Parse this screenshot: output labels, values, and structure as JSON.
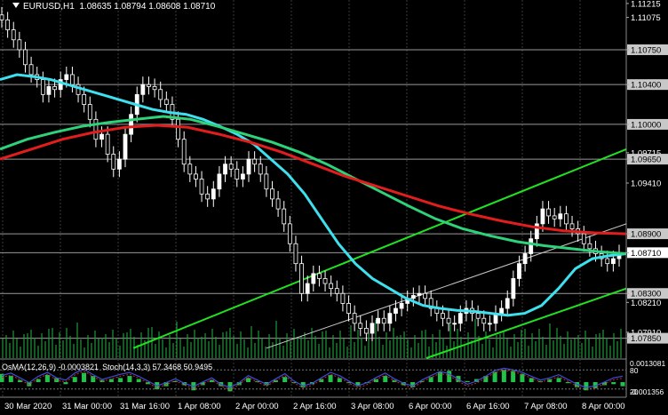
{
  "header": {
    "symbol": "EURUSD,H1",
    "ohlc": "1.08635 1.08794 1.08608 1.08710"
  },
  "oscillator": {
    "osma": "OsMA(12,26,9) -0.0003821",
    "stoch": "Stoch(14,3,3) 57.3468 50.9495",
    "right_labels": [
      "0.0013081",
      "80",
      "20",
      "-0.001356"
    ]
  },
  "chart_data": {
    "type": "line",
    "title": "",
    "xlabel": "",
    "ylabel": "",
    "ylim": [
      1.0765,
      1.1125
    ],
    "yticks": [
      "1.11215",
      "1.11075",
      "1.10750",
      "1.10400",
      "1.10000",
      "1.09715",
      "1.09650",
      "1.09410",
      "1.08900",
      "1.08710",
      "1.08300",
      "1.08210",
      "1.07910",
      "1.07850"
    ],
    "highlighted_levels": [
      1.1075,
      1.104,
      1.1,
      1.0965,
      1.089,
      1.0871,
      1.083,
      1.0785
    ],
    "current_price": 1.0871,
    "x_tick_labels": [
      "30 Mar 2020",
      "31 Mar 00:00",
      "31 Mar 16:00",
      "1 Apr 08:00",
      "2 Apr 00:00",
      "2 Apr 16:00",
      "3 Apr 08:00",
      "6 Apr 00:00",
      "6 Apr 16:00",
      "7 Apr 08:00",
      "8 Apr 00:00"
    ],
    "candles_close": [
      1.1105,
      1.1095,
      1.1085,
      1.1075,
      1.106,
      1.105,
      1.1045,
      1.103,
      1.1038,
      1.1035,
      1.1045,
      1.105,
      1.104,
      1.103,
      1.102,
      1.1005,
      1.0985,
      1.099,
      1.097,
      1.0955,
      1.0965,
      1.099,
      1.101,
      1.103,
      1.104,
      1.1038,
      1.1035,
      1.1025,
      1.102,
      1.1005,
      1.0985,
      1.096,
      1.095,
      1.0945,
      1.093,
      1.0925,
      1.0935,
      1.095,
      1.096,
      1.0955,
      1.0945,
      1.095,
      1.0965,
      1.096,
      1.095,
      1.0935,
      1.0925,
      1.0915,
      1.09,
      1.088,
      1.086,
      1.083,
      1.084,
      1.085,
      1.0845,
      1.084,
      1.0835,
      1.083,
      1.082,
      1.081,
      1.08,
      1.0795,
      1.079,
      1.08,
      1.0805,
      1.08,
      1.081,
      1.0815,
      1.082,
      1.0825,
      1.0828,
      1.083,
      1.0825,
      1.0815,
      1.081,
      1.0805,
      1.08,
      1.08,
      1.081,
      1.0815,
      1.081,
      1.0805,
      1.08,
      1.08,
      1.081,
      1.0815,
      1.0825,
      1.0845,
      1.086,
      1.087,
      1.0885,
      1.09,
      1.0915,
      1.0908,
      1.0905,
      1.091,
      1.09,
      1.0895,
      1.089,
      1.088,
      1.0875,
      1.087,
      1.0865,
      1.086,
      1.0865,
      1.0871
    ],
    "series": [
      {
        "values": [
          1.1045,
          1.105,
          1.1048,
          1.1045,
          1.104,
          1.1035,
          1.103,
          1.1025,
          1.102,
          1.1015,
          1.1012,
          1.101,
          1.1005,
          1.0998,
          1.099,
          1.098,
          1.0965,
          1.095,
          1.093,
          1.0905,
          1.088,
          1.086,
          1.0845,
          1.0835,
          1.0825,
          1.0818,
          1.0815,
          1.0813,
          1.0812,
          1.081,
          1.0808,
          1.081,
          1.0818,
          1.0835,
          1.0855,
          1.0865,
          1.0868,
          1.087
        ],
        "color": "#3fe0ee"
      },
      {
        "values": [
          1.0975,
          1.0985,
          1.0992,
          1.0998,
          1.1002,
          1.1005,
          1.1008,
          1.1005,
          1.0998,
          1.099,
          1.0982,
          1.0972,
          1.096,
          1.0946,
          1.0932,
          1.0918,
          1.0905,
          1.0895,
          1.0888,
          1.0882,
          1.0878,
          1.0875,
          1.0872,
          1.087
        ],
        "color": "#2ed27a"
      },
      {
        "values": [
          1.0965,
          1.0975,
          1.0985,
          1.0992,
          1.0997,
          1.0999,
          1.0997,
          1.099,
          1.0982,
          1.0972,
          1.096,
          1.0948,
          1.0938,
          1.0928,
          1.0918,
          1.091,
          1.0903,
          1.0897,
          1.0893,
          1.0891,
          1.089
        ],
        "color": "#e21d1d"
      }
    ],
    "channels": [
      {
        "from": 1.0775,
        "to": 1.0975,
        "color": "#22e022"
      },
      {
        "from": 1.0765,
        "to": 1.0835,
        "color": "#22e022"
      },
      {
        "from": 1.0775,
        "to": 1.09,
        "color": "#c8c8c8"
      }
    ],
    "oscillator_stoch": [
      62,
      70,
      55,
      40,
      60,
      72,
      55,
      48,
      70,
      82,
      65,
      50,
      58,
      66,
      72,
      60,
      45,
      30,
      40,
      52,
      38,
      28,
      42,
      55,
      35,
      25,
      40,
      62,
      48,
      35,
      52,
      68,
      45,
      30,
      38,
      55,
      72,
      62,
      45,
      30,
      40,
      56,
      70,
      52,
      38,
      30,
      48,
      62,
      75,
      68,
      50,
      35,
      45,
      60,
      78,
      85,
      80,
      72,
      60,
      48,
      55,
      65,
      50,
      35,
      25,
      30,
      42,
      55,
      60
    ],
    "oscillator_osma": [
      0.0008,
      0.0006,
      0.0002,
      -0.0004,
      0.0003,
      0.0007,
      0.0004,
      -0.0002,
      0.0005,
      0.0009,
      0.0006,
      0.0002,
      0.0003,
      0.0004,
      0.0006,
      0.0003,
      -0.0002,
      -0.0007,
      -0.0004,
      0.0001,
      -0.0003,
      -0.0008,
      -0.0003,
      0.0002,
      -0.0004,
      -0.0009,
      -0.0003,
      0.0004,
      0.0001,
      -0.0003,
      0.0002,
      0.0005,
      -0.0001,
      -0.0005,
      -0.0002,
      0.0003,
      0.0007,
      0.0004,
      -0.0001,
      -0.0004,
      -0.0001,
      0.0003,
      0.0006,
      0.0002,
      -0.0003,
      -0.0005,
      0.0001,
      0.0005,
      0.001,
      0.0011,
      0.0006,
      0.0001,
      0.0003,
      0.0006,
      0.001,
      0.0012,
      0.0011,
      0.0008,
      0.0004,
      0.0001,
      0.0003,
      0.0004,
      -0.0001,
      -0.0005,
      -0.0008,
      -0.0006,
      -0.0003,
      -0.0002,
      -0.0004
    ]
  }
}
